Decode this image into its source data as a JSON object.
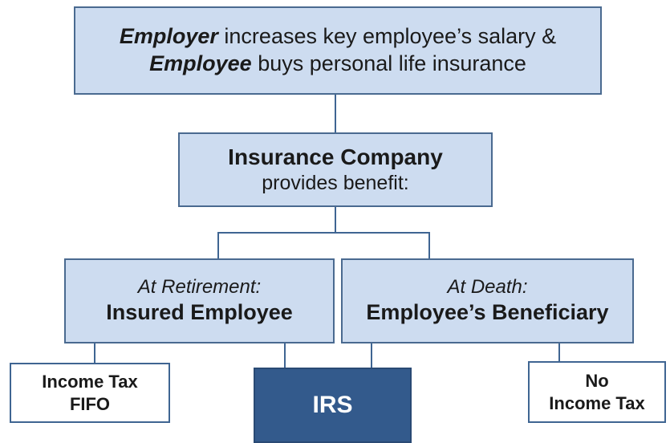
{
  "employer_box": {
    "line1_emphasis": "Employer",
    "line1_rest": "increases key employee’s salary &",
    "line2_emphasis": "Employee",
    "line2_rest": "buys personal life insurance"
  },
  "insurer_box": {
    "title": "Insurance Company",
    "subtitle": "provides benefit:"
  },
  "retirement_box": {
    "condition": "At Retirement:",
    "recipient": "Insured Employee"
  },
  "death_box": {
    "condition": "At Death:",
    "recipient": "Employee’s Beneficiary"
  },
  "retirement_tax_box": {
    "line1": "Income Tax",
    "line2": "FIFO"
  },
  "irs_box": {
    "label": "IRS"
  },
  "death_tax_box": {
    "line1": "No",
    "line2": "Income Tax"
  }
}
